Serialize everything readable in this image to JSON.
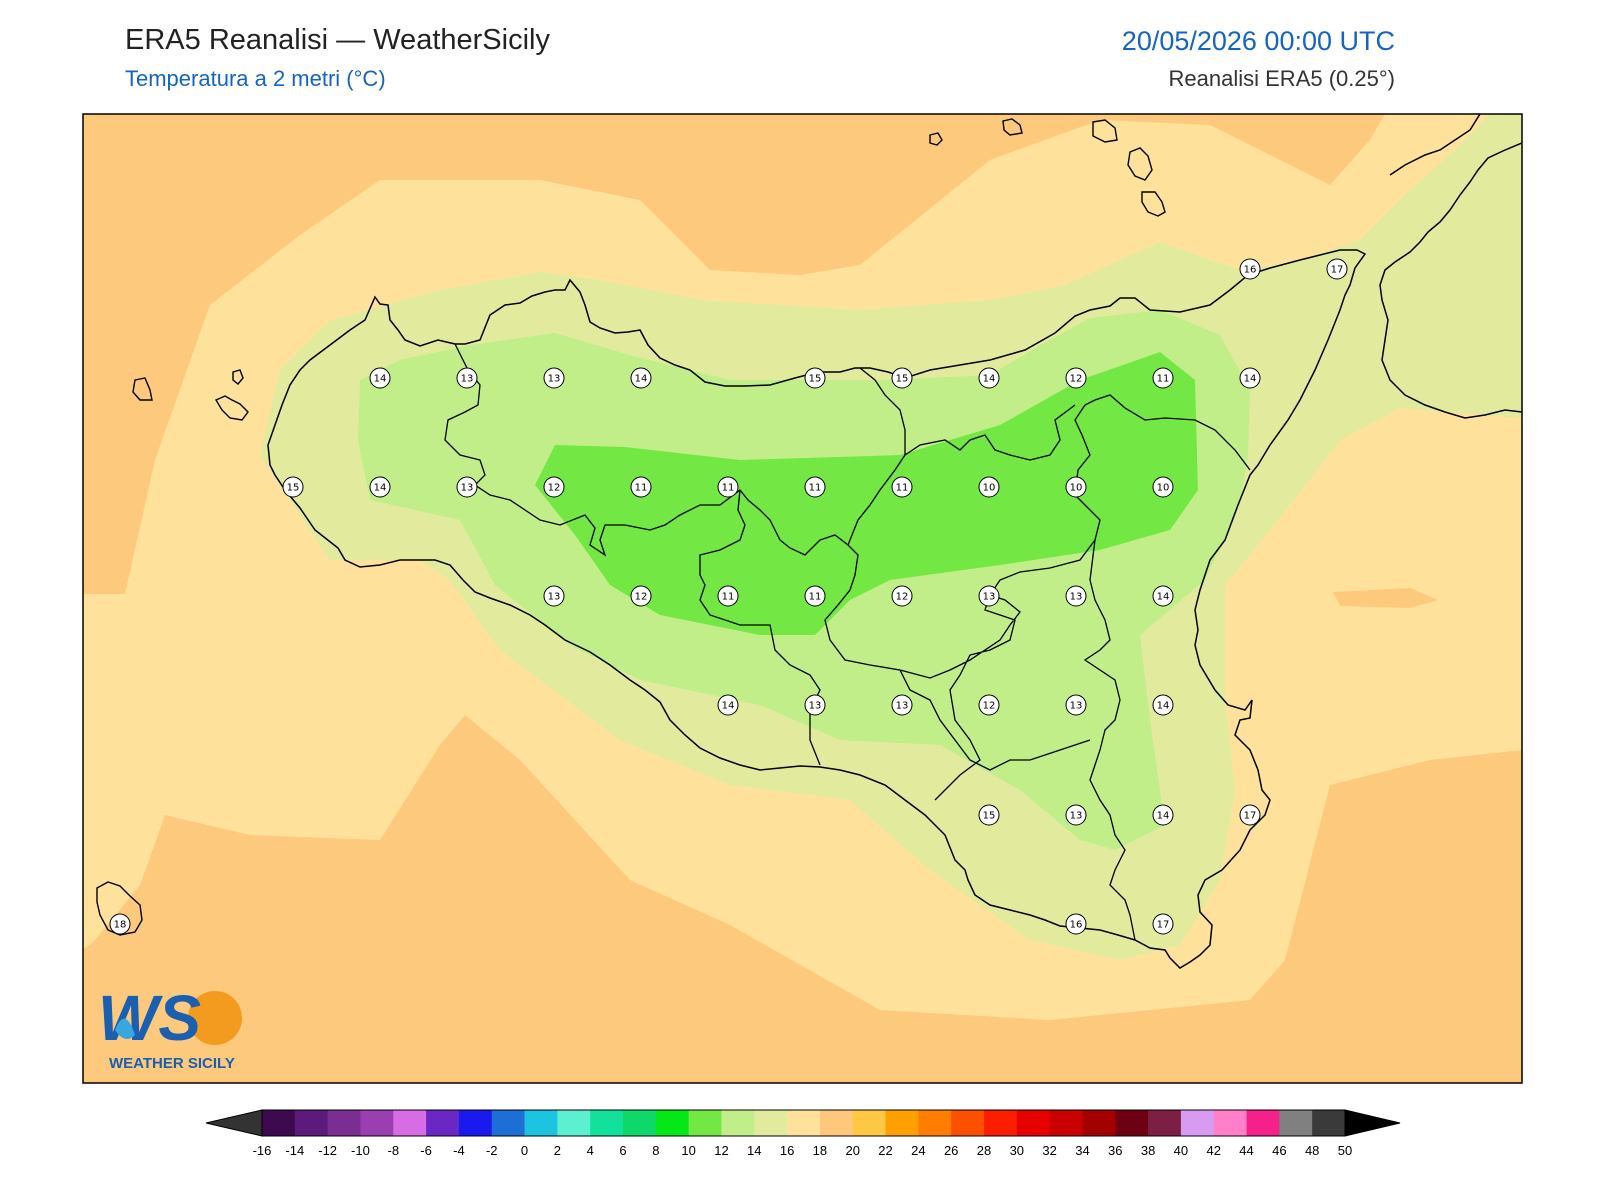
{
  "header": {
    "title": "ERA5 Reanalisi — WeatherSicily",
    "subtitle": "Temperatura a 2 metri (°C)",
    "datetime": "20/05/2026 00:00 UTC",
    "source": "Reanalisi ERA5 (0.25°)"
  },
  "logo": {
    "mark": "WS",
    "text": "WEATHER SICILY"
  },
  "station_values": {
    "row1": [
      "14",
      "13",
      "13",
      "14",
      "15",
      "15",
      "14",
      "12",
      "11",
      "14"
    ],
    "row2": [
      "15",
      "14",
      "13",
      "12",
      "11",
      "11",
      "11",
      "11",
      "10",
      "10",
      "10"
    ],
    "row3": [
      "13",
      "12",
      "11",
      "11",
      "12",
      "13",
      "13",
      "14"
    ],
    "row4": [
      "14",
      "13",
      "13",
      "12",
      "13",
      "14"
    ],
    "row5": [
      "15",
      "13",
      "14",
      "17"
    ],
    "row6": [
      "16",
      "17"
    ],
    "aeolian": [
      "16",
      "17"
    ],
    "pantelleria": [
      "18"
    ]
  },
  "colorbar": {
    "ticks": [
      "-16",
      "-14",
      "-12",
      "-10",
      "-8",
      "-6",
      "-4",
      "-2",
      "0",
      "2",
      "4",
      "6",
      "8",
      "10",
      "12",
      "14",
      "16",
      "18",
      "20",
      "22",
      "24",
      "26",
      "28",
      "30",
      "32",
      "34",
      "36",
      "38",
      "40",
      "42",
      "44",
      "46",
      "48",
      "50"
    ],
    "colors": [
      "#3d0a4f",
      "#5c1a7a",
      "#7a2e91",
      "#9a3fb0",
      "#d76de5",
      "#6a27c4",
      "#1a1aee",
      "#1d6fd6",
      "#1cc4e0",
      "#5cf0d0",
      "#13e09a",
      "#0fd86a",
      "#04e818",
      "#73e844",
      "#c2ee8a",
      "#e2ea9e",
      "#fee29c",
      "#fdc87c",
      "#ffc844",
      "#ffa000",
      "#ff7d00",
      "#fb5000",
      "#fc1e00",
      "#e60000",
      "#c80000",
      "#a50000",
      "#6e0014",
      "#7b1f45",
      "#d79bf2",
      "#ff80c8",
      "#f5208a",
      "#808080",
      "#3a3a3a"
    ]
  },
  "map_colors": {
    "sea_warm": "#fdc97d",
    "sea_mild": "#fee29c",
    "band_16": "#e2ea9e",
    "band_14": "#c2ee8a",
    "band_12": "#73e844",
    "frame": "#000000",
    "coast": "#000000"
  }
}
